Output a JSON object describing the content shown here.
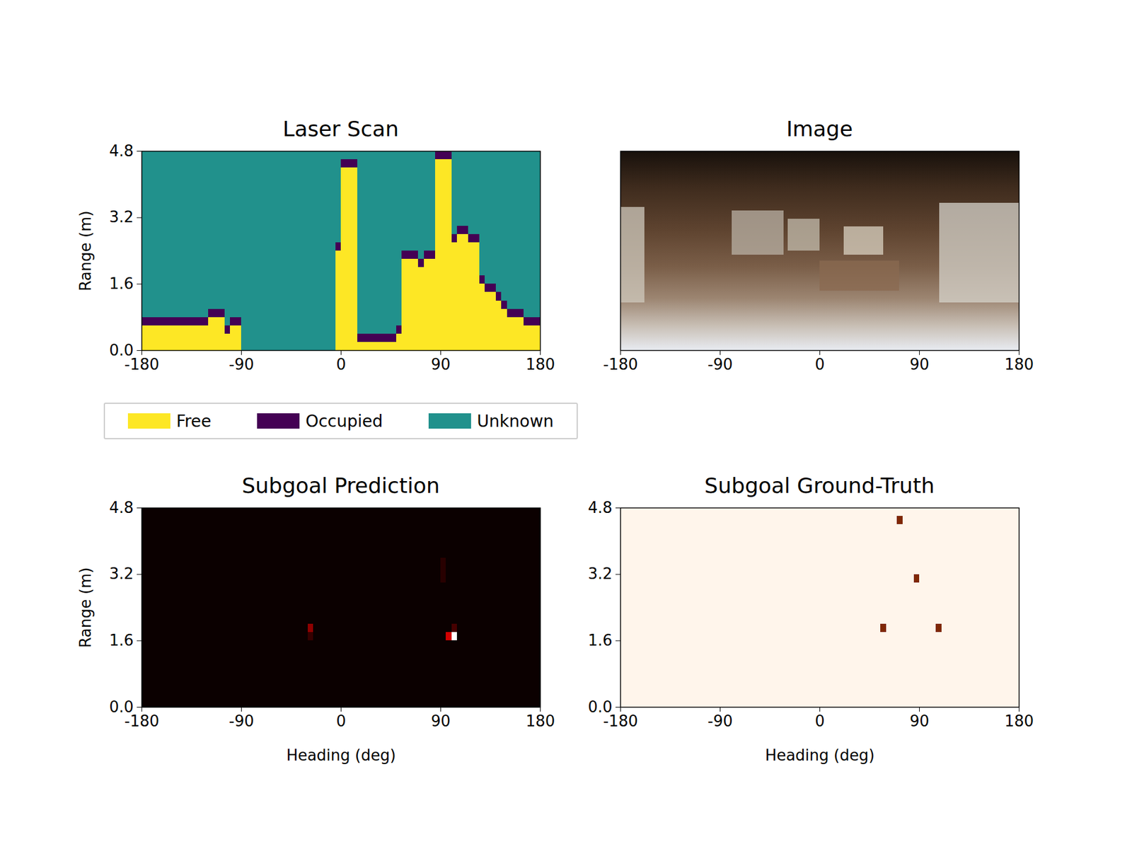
{
  "chart_data": [
    {
      "type": "heatmap",
      "title": "Laser Scan",
      "ylabel": "Range (m)",
      "xlim": [
        -180,
        180
      ],
      "xticks": [
        -180,
        -90,
        0,
        90,
        180
      ],
      "ylim": [
        0,
        4.8
      ],
      "yticks": [
        {
          "value": 0,
          "label": "0.0"
        },
        1.6,
        3.2,
        4.8
      ],
      "categories": [
        "Free",
        "Occupied",
        "Unknown"
      ],
      "colors": [
        "#fde725",
        "#440154",
        "#21918c"
      ],
      "legend": "bottom",
      "range_step": 0.2,
      "x": [
        -180,
        -175,
        -170,
        -165,
        -160,
        -155,
        -150,
        -145,
        -140,
        -135,
        -130,
        -125,
        -120,
        -115,
        -110,
        -105,
        -100,
        -95,
        -90,
        -85,
        -80,
        -75,
        -70,
        -65,
        -60,
        -55,
        -50,
        -45,
        -40,
        -35,
        -30,
        -25,
        -20,
        -15,
        -10,
        -5,
        0,
        5,
        10,
        15,
        20,
        25,
        30,
        35,
        40,
        45,
        50,
        55,
        60,
        65,
        70,
        75,
        80,
        85,
        90,
        95,
        100,
        105,
        110,
        115,
        120,
        125,
        130,
        135,
        140,
        145,
        150,
        155,
        160,
        165,
        170,
        175
      ],
      "occupied_range": [
        0.6,
        0.6,
        0.6,
        0.6,
        0.6,
        0.6,
        0.6,
        0.6,
        0.6,
        0.6,
        0.6,
        0.6,
        0.8,
        0.8,
        0.8,
        0.4,
        0.6,
        0.6,
        null,
        null,
        null,
        null,
        null,
        null,
        null,
        null,
        null,
        null,
        null,
        null,
        null,
        null,
        null,
        null,
        null,
        2.4,
        4.4,
        4.4,
        4.4,
        0.2,
        0.2,
        0.2,
        0.2,
        0.2,
        0.2,
        0.2,
        0.4,
        2.2,
        2.2,
        2.2,
        2.0,
        2.2,
        2.2,
        4.6,
        4.6,
        4.6,
        2.6,
        2.8,
        2.8,
        2.6,
        2.6,
        1.6,
        1.4,
        1.4,
        1.2,
        1.0,
        0.8,
        0.8,
        0.8,
        0.6,
        0.6,
        0.6
      ]
    },
    {
      "type": "image",
      "title": "Image",
      "xlim": [
        -180,
        180
      ],
      "xticks": [
        -180,
        -90,
        0,
        90,
        180
      ],
      "tick_labels": "x"
    },
    {
      "type": "heatmap",
      "title": "Subgoal Prediction",
      "xlabel": "Heading (deg)",
      "ylabel": "Range (m)",
      "xlim": [
        -180,
        180
      ],
      "xticks": [
        -180,
        -90,
        0,
        90,
        180
      ],
      "ylim": [
        0,
        4.8
      ],
      "yticks": [
        {
          "value": 0,
          "label": "0.0"
        },
        1.6,
        3.2,
        4.8
      ],
      "color": "hot",
      "clim": [
        0,
        1
      ],
      "heading_step": 5,
      "range_step": 0.2,
      "cells": [
        {
          "x": -30,
          "y": 1.8,
          "value": 0.18
        },
        {
          "x": -30,
          "y": 1.6,
          "value": 0.06
        },
        {
          "x": 90,
          "y": 3.0,
          "value": 0.04
        },
        {
          "x": 90,
          "y": 3.2,
          "value": 0.04
        },
        {
          "x": 90,
          "y": 3.4,
          "value": 0.04
        },
        {
          "x": 95,
          "y": 1.6,
          "value": 0.27
        },
        {
          "x": 100,
          "y": 1.6,
          "value": 1.0
        },
        {
          "x": 100,
          "y": 1.8,
          "value": 0.08
        }
      ]
    },
    {
      "type": "heatmap",
      "title": "Subgoal Ground-Truth",
      "xlabel": "Heading (deg)",
      "xlim": [
        -180,
        180
      ],
      "xticks": [
        -180,
        -90,
        0,
        90,
        180
      ],
      "ylim": [
        0,
        4.8
      ],
      "yticks": [
        {
          "value": 0,
          "label": "0.0"
        },
        1.6,
        3.2,
        4.8
      ],
      "color": "oranges",
      "clim": [
        0,
        1
      ],
      "heading_step": 5,
      "range_step": 0.2,
      "cells": [
        {
          "x": 55,
          "y": 1.8,
          "value": 1
        },
        {
          "x": 105,
          "y": 1.8,
          "value": 1
        },
        {
          "x": 85,
          "y": 3.0,
          "value": 1
        },
        {
          "x": 70,
          "y": 4.4,
          "value": 1
        }
      ]
    }
  ]
}
